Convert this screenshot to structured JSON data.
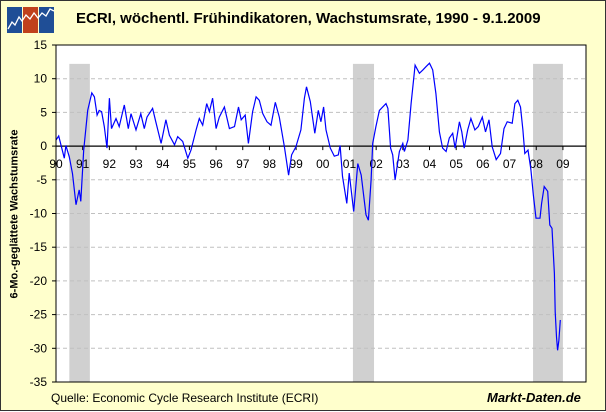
{
  "header": {
    "title": "ECRI, wöchentl. Frühindikatoren, Wachstumsrate, 1990 - 9.1.2009",
    "logo_icon": "chart-zigzag-logo"
  },
  "footer": {
    "source": "Quelle: Economic Cycle Research Institute (ECRI)",
    "brand": "Markt-Daten.de"
  },
  "colors": {
    "background": "#FFFFCC",
    "line": "#0000FF",
    "recession": "#D0D0D0",
    "grid": "#C0C0C0"
  },
  "chart_data": {
    "type": "line",
    "title": "ECRI, wöchentl. Frühindikatoren, Wachstumsrate, 1990 - 9.1.2009",
    "xlabel": "",
    "ylabel": "6-Mo.-geglättete Wachstumsrate",
    "xlim": [
      1990,
      2009.9
    ],
    "ylim": [
      -35,
      15
    ],
    "yticks": [
      15,
      10,
      5,
      0,
      -5,
      -10,
      -15,
      -20,
      -25,
      -30,
      -35
    ],
    "xtick_labels": [
      "90",
      "91",
      "92",
      "93",
      "94",
      "95",
      "96",
      "97",
      "98",
      "99",
      "00",
      "01",
      "02",
      "03",
      "04",
      "05",
      "06",
      "07",
      "08",
      "09"
    ],
    "grid": "horizontal dashed",
    "legend": "none",
    "recession_shading": [
      [
        1990.5,
        1991.27
      ],
      [
        2001.13,
        2001.92
      ],
      [
        2007.88,
        2009.0
      ]
    ],
    "series": [
      {
        "x": [
          1990.0,
          1990.1,
          1990.31,
          1990.37,
          1990.5,
          1990.62,
          1990.75,
          1990.87,
          1990.93,
          1991.04,
          1991.19,
          1991.34,
          1991.44,
          1991.54,
          1991.62,
          1991.71,
          1991.81,
          1991.91,
          1992.0,
          1992.08,
          1992.25,
          1992.37,
          1992.56,
          1992.71,
          1992.81,
          1993.0,
          1993.18,
          1993.31,
          1993.41,
          1993.62,
          1993.74,
          1993.94,
          1994.12,
          1994.25,
          1994.44,
          1994.56,
          1994.75,
          1994.94,
          1995.06,
          1995.25,
          1995.37,
          1995.5,
          1995.65,
          1995.75,
          1995.87,
          1996.0,
          1996.12,
          1996.31,
          1996.5,
          1996.69,
          1996.84,
          1996.94,
          1997.09,
          1997.21,
          1997.37,
          1997.5,
          1997.62,
          1997.75,
          1997.91,
          1998.06,
          1998.22,
          1998.37,
          1998.56,
          1998.72,
          1998.83,
          1998.99,
          1999.18,
          1999.31,
          1999.39,
          1999.53,
          1999.7,
          1999.83,
          1999.93,
          2000.03,
          2000.12,
          2000.28,
          2000.43,
          2000.58,
          2000.65,
          2000.74,
          2000.9,
          2000.99,
          2001.16,
          2001.31,
          2001.44,
          2001.62,
          2001.71,
          2001.81,
          2001.87,
          2001.99,
          2002.12,
          2002.37,
          2002.44,
          2002.54,
          2002.62,
          2002.71,
          2002.87,
          2003.0,
          2003.06,
          2003.19,
          2003.31,
          2003.46,
          2003.62,
          2003.75,
          2003.87,
          2004.0,
          2004.12,
          2004.24,
          2004.37,
          2004.49,
          2004.62,
          2004.74,
          2004.87,
          2004.96,
          2005.12,
          2005.21,
          2005.3,
          2005.43,
          2005.55,
          2005.7,
          2005.83,
          2005.98,
          2006.1,
          2006.23,
          2006.35,
          2006.5,
          2006.66,
          2006.79,
          2006.91,
          2007.1,
          2007.2,
          2007.31,
          2007.41,
          2007.5,
          2007.57,
          2007.69,
          2007.8,
          2007.89,
          2007.99,
          2008.14,
          2008.2,
          2008.3,
          2008.43,
          2008.51,
          2008.59,
          2008.68,
          2008.71,
          2008.76,
          2008.8,
          2008.85,
          2008.9
        ],
        "y": [
          0.9,
          1.5,
          -1.8,
          0.1,
          -1.6,
          -4.1,
          -8.7,
          -6.5,
          -8.2,
          -0.6,
          5.3,
          7.9,
          7.3,
          4.6,
          5.3,
          5.1,
          2.9,
          -0.3,
          7.1,
          2.6,
          4.1,
          2.9,
          6.1,
          2.6,
          4.8,
          2.4,
          4.8,
          2.6,
          4.3,
          5.6,
          3.6,
          0.4,
          3.9,
          1.6,
          0.2,
          1.4,
          0.7,
          -1.8,
          -0.6,
          2.4,
          4.1,
          3.1,
          6.3,
          5.1,
          7.1,
          2.6,
          4.3,
          5.8,
          2.6,
          2.9,
          5.8,
          3.9,
          4.6,
          0.4,
          5.1,
          7.3,
          6.8,
          4.8,
          3.6,
          3.1,
          6.5,
          4.3,
          -0.1,
          -4.3,
          -1.3,
          -0.1,
          2.4,
          7.1,
          8.8,
          6.6,
          1.9,
          5.3,
          3.6,
          5.8,
          2.4,
          -0.3,
          -1.5,
          -1.3,
          0.1,
          -4.5,
          -8.5,
          -4.0,
          -9.7,
          -2.6,
          -4.3,
          -10.2,
          -11.0,
          -5.0,
          0.4,
          2.9,
          5.3,
          6.3,
          5.6,
          -0.3,
          -1.3,
          -5.0,
          -0.8,
          0.4,
          -0.8,
          0.9,
          6.3,
          12.0,
          10.8,
          11.3,
          11.8,
          12.3,
          11.3,
          7.8,
          2.1,
          -0.3,
          -0.8,
          1.2,
          1.9,
          -0.3,
          3.6,
          2.1,
          -0.3,
          2.4,
          4.1,
          2.4,
          2.9,
          4.3,
          2.1,
          3.9,
          -0.1,
          -2.0,
          -1.1,
          2.6,
          3.6,
          3.4,
          6.3,
          6.8,
          5.8,
          2.4,
          -1.1,
          -0.6,
          -3.5,
          -7.2,
          -10.7,
          -10.7,
          -8.5,
          -6.0,
          -6.7,
          -11.7,
          -12.2,
          -18.9,
          -24.6,
          -28.3,
          -30.3,
          -28.8,
          -25.8
        ]
      }
    ]
  }
}
